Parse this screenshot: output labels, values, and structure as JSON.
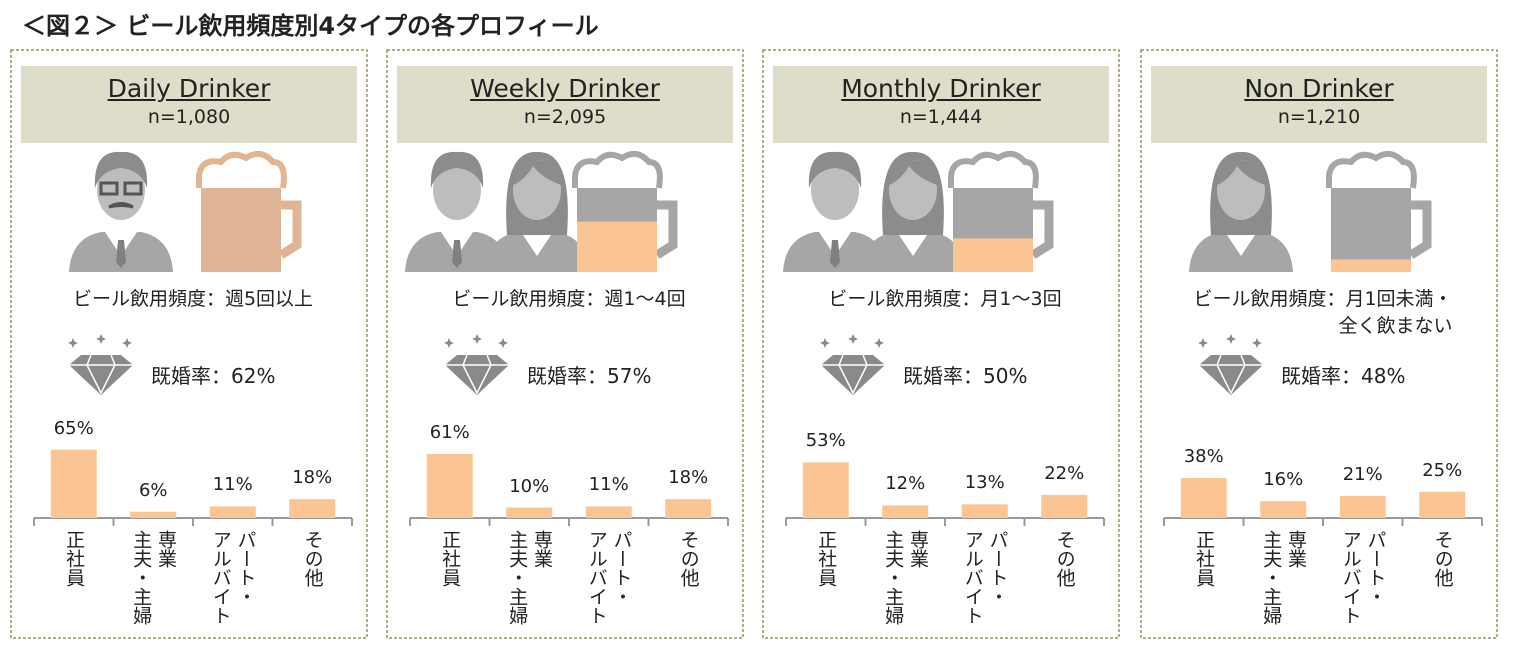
{
  "title": "＜図２＞ ビール飲用頻度別4タイプの各プロフィール",
  "chart_data": [
    {
      "type": "bar",
      "title": "Daily Drinker",
      "subtitle": "n=1,080",
      "annotations": [
        "ビール飲用頻度：週5回以上",
        "既婚率：62%"
      ],
      "categories": [
        "正社員",
        "専業\n主夫・主婦",
        "パート・\nアルバイト",
        "その他"
      ],
      "values": [
        65,
        6,
        11,
        18
      ],
      "value_labels": [
        "65%",
        "6%",
        "11%",
        "18%"
      ],
      "color": "#fac592"
    },
    {
      "type": "bar",
      "title": "Weekly Drinker",
      "subtitle": "n=2,095",
      "annotations": [
        "ビール飲用頻度：週1～4回",
        "既婚率：57%"
      ],
      "categories": [
        "正社員",
        "専業\n主夫・主婦",
        "パート・\nアルバイト",
        "その他"
      ],
      "values": [
        61,
        10,
        11,
        18
      ],
      "value_labels": [
        "61%",
        "10%",
        "11%",
        "18%"
      ],
      "color": "#fac592"
    },
    {
      "type": "bar",
      "title": "Monthly Drinker",
      "subtitle": "n=1,444",
      "annotations": [
        "ビール飲用頻度：月1～3回",
        "既婚率：50%"
      ],
      "categories": [
        "正社員",
        "専業\n主夫・主婦",
        "パート・\nアルバイト",
        "その他"
      ],
      "values": [
        53,
        12,
        13,
        22
      ],
      "value_labels": [
        "53%",
        "12%",
        "13%",
        "22%"
      ],
      "color": "#fac592"
    },
    {
      "type": "bar",
      "title": "Non Drinker",
      "subtitle": "n=1,210",
      "annotations": [
        "ビール飲用頻度：月1回未満・\n全く飲まない",
        "既婚率：48%"
      ],
      "categories": [
        "正社員",
        "専業\n主夫・主婦",
        "パート・\nアルバイト",
        "その他"
      ],
      "values": [
        38,
        16,
        21,
        25
      ],
      "value_labels": [
        "38%",
        "16%",
        "21%",
        "25%"
      ],
      "color": "#fac592"
    }
  ]
}
